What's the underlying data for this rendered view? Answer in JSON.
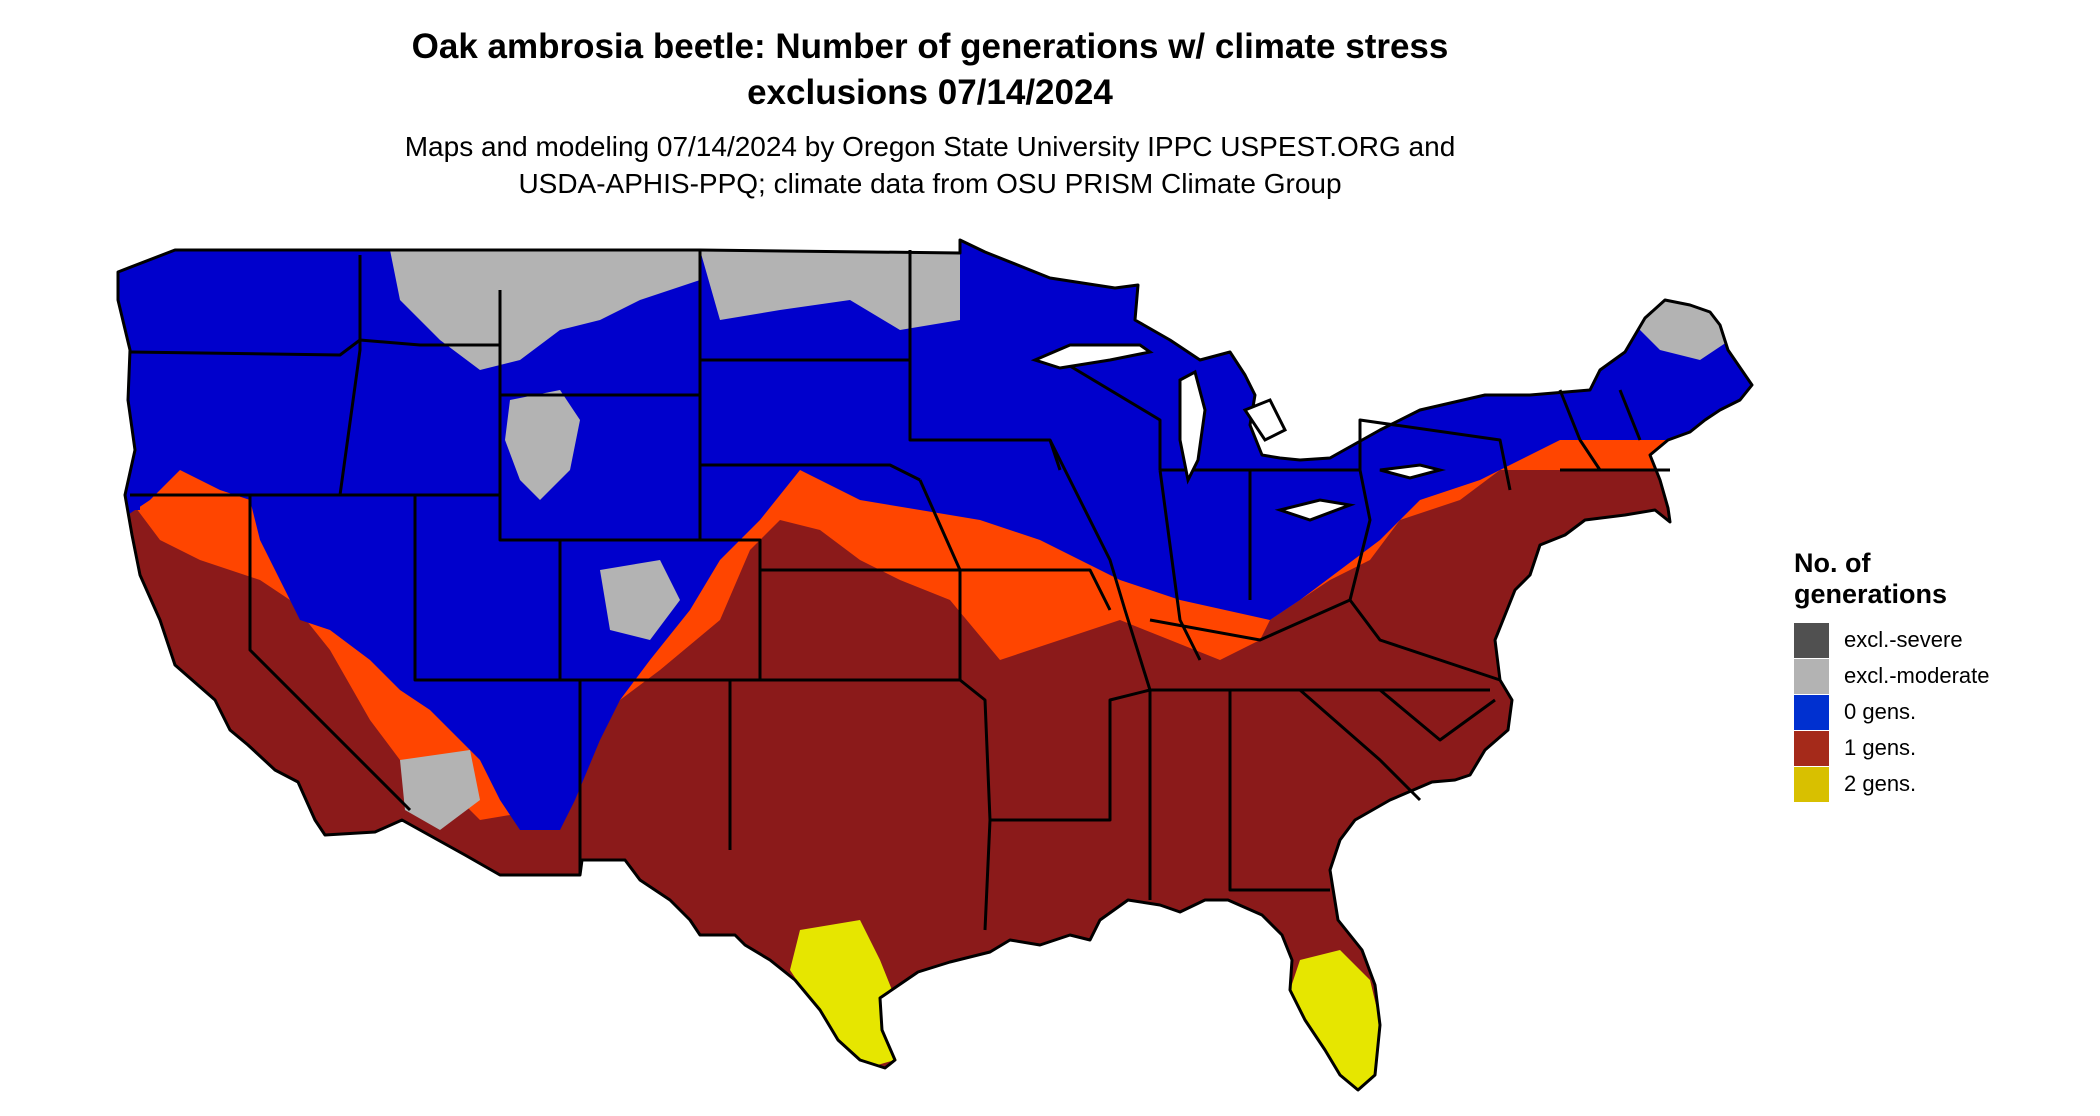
{
  "title": {
    "line1": "Oak ambrosia beetle: Number of generations w/ climate stress",
    "line2": "exclusions 07/14/2024"
  },
  "subtitle": {
    "line1": "Maps and modeling 07/14/2024 by Oregon State University IPPC USPEST.ORG and",
    "line2": "USDA-APHIS-PPQ; climate data from OSU PRISM Climate Group"
  },
  "legend": {
    "title_line1": "No. of",
    "title_line2": "generations",
    "items": [
      {
        "label": "excl.-severe",
        "color": "#505050"
      },
      {
        "label": "excl.-moderate",
        "color": "#b3b3b3"
      },
      {
        "label": "0 gens.",
        "color": "#0030d0"
      },
      {
        "label": "1 gens.",
        "color": "#a52a1a"
      },
      {
        "label": "2 gens.",
        "color": "#d8c000"
      }
    ]
  },
  "map_colors": {
    "zero_gens": "#0000cc",
    "one_gen_dark": "#8b1a1a",
    "one_gen_mid": "#b0301a",
    "one_gen_light": "#ff4500",
    "two_gens": "#e6e600",
    "excluded_moderate": "#b3b3b3",
    "excluded_severe": "#505050",
    "borders": "#000000"
  }
}
